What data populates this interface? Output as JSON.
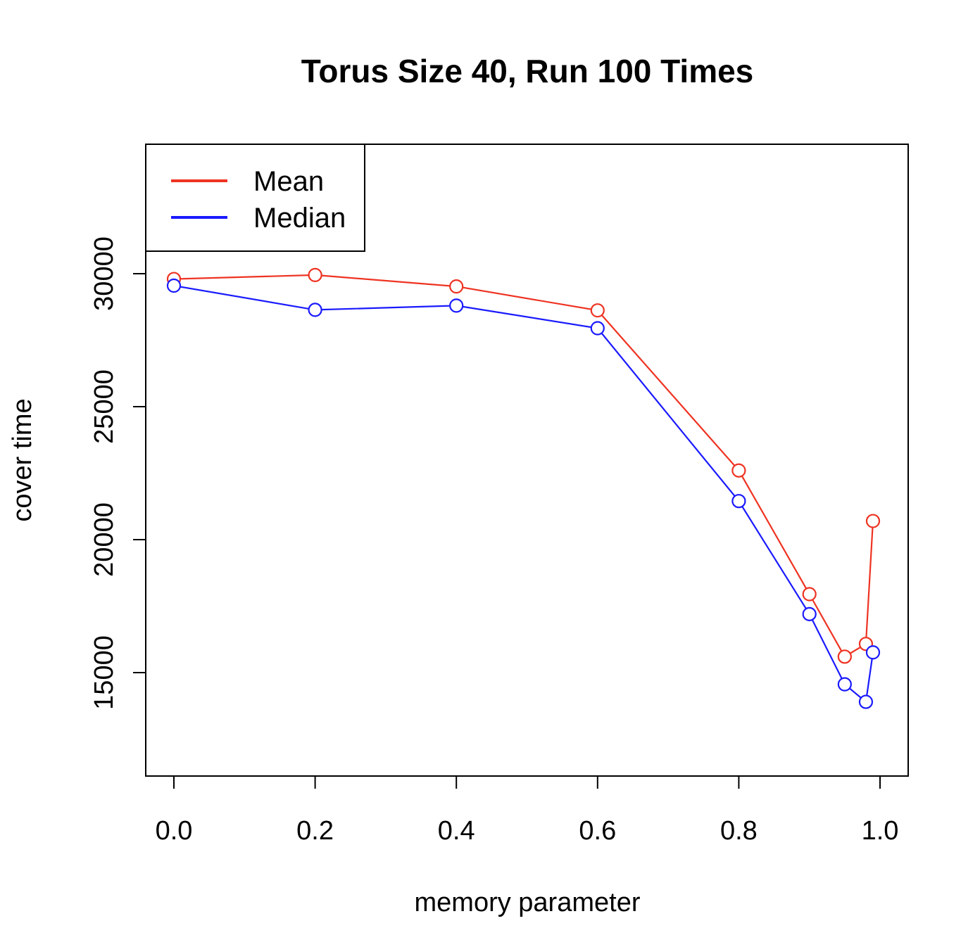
{
  "chart_data": {
    "type": "line",
    "title": "Torus Size 40, Run 100 Times",
    "xlabel": "memory parameter",
    "ylabel": "cover time",
    "xlim": [
      0.0,
      1.0
    ],
    "ylim": [
      13000,
      31500
    ],
    "x_ticks": [
      "0.0",
      "0.2",
      "0.4",
      "0.6",
      "0.8",
      "1.0"
    ],
    "y_ticks": [
      "15000",
      "20000",
      "25000",
      "30000"
    ],
    "x": [
      0.0,
      0.2,
      0.4,
      0.6,
      0.8,
      0.9,
      0.95,
      0.98,
      0.99
    ],
    "series": [
      {
        "name": "Mean",
        "color": "#ee3322",
        "values": [
          29800,
          29950,
          29520,
          28620,
          22600,
          17950,
          15600,
          16080,
          20700
        ]
      },
      {
        "name": "Median",
        "color": "#1a1aff",
        "values": [
          29550,
          28640,
          28800,
          27950,
          21450,
          17200,
          14560,
          13900,
          15760
        ]
      }
    ],
    "legend": "top-left",
    "grid": false,
    "markers": "open-circle"
  }
}
